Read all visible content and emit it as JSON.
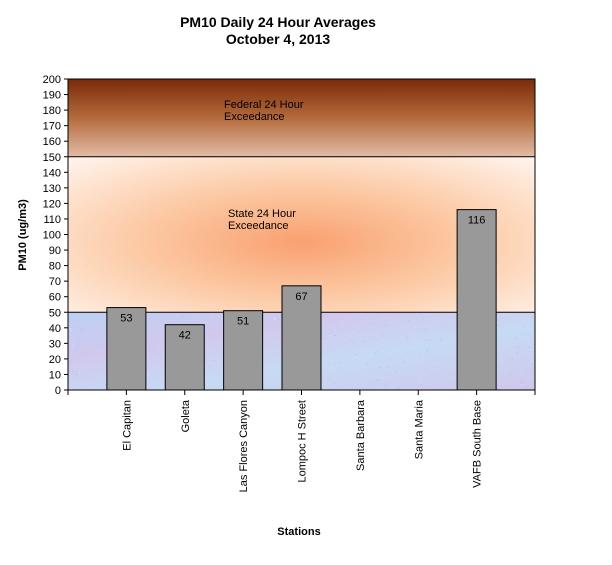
{
  "chart_data": {
    "type": "bar",
    "title_line1": "PM10 Daily 24 Hour Averages",
    "title_line2": "October 4, 2013",
    "xlabel": "Stations",
    "ylabel": "PM10 (ug/m3)",
    "ylim": [
      0,
      200
    ],
    "ytick_step": 10,
    "categories": [
      "El Capitan",
      "Goleta",
      "Las Flores Canyon",
      "Lompoc H Street",
      "Santa Barbara",
      "Santa Maria",
      "VAFB South Base"
    ],
    "values": [
      53,
      42,
      51,
      67,
      null,
      null,
      116
    ],
    "bar_color": "#999999",
    "legend": "none",
    "zones": [
      {
        "label_line1": "Federal 24 Hour",
        "label_line2": "Exceedance",
        "from": 150,
        "to": 200,
        "color_top": "#7a2a08",
        "color_bottom": "#e0b8a0"
      },
      {
        "label_line1": "State 24 Hour",
        "label_line2": "Exceedance",
        "from": 50,
        "to": 150,
        "color_top": "#fff5ee",
        "color_bottom": "#fff5ee"
      },
      {
        "from": 0,
        "to": 50,
        "color_top": "#c6d6f2",
        "color_bottom": "#c6d6f2"
      }
    ]
  }
}
